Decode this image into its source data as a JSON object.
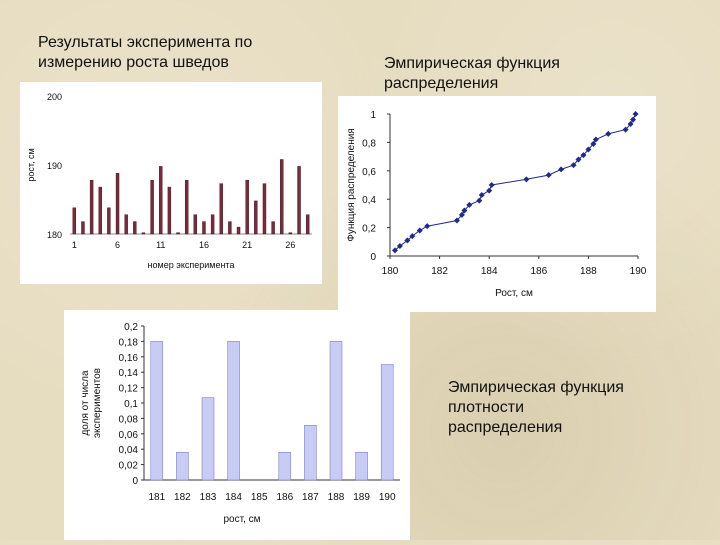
{
  "captions": {
    "top_left": "Результаты эксперимента по\nизмерению роста шведов",
    "top_right": "Эмпирическая функция\nраспределения",
    "bottom_right": "Эмпирическая функция\nплотности\nраспределения"
  },
  "colors": {
    "page_background": "#e6dcc0",
    "height_bars": "#7a2a3a",
    "cdf_line": "#1f2a8c",
    "cdf_markers": "#1f2a8c",
    "density_bars": "#c8ccf4",
    "density_bar_border": "#6a6fc4"
  },
  "chart_data": [
    {
      "id": "heights",
      "type": "bar",
      "ylabel": "рост, см",
      "xlabel": "номер эксперимента",
      "ylim": [
        180,
        200
      ],
      "yticks": [
        "180",
        "190",
        "200"
      ],
      "xticks": [
        "1",
        "6",
        "11",
        "16",
        "21",
        "26"
      ],
      "x": [
        1,
        2,
        3,
        4,
        5,
        6,
        7,
        8,
        9,
        10,
        11,
        12,
        13,
        14,
        15,
        16,
        17,
        18,
        19,
        20,
        21,
        22,
        23,
        24,
        25,
        26,
        27,
        28
      ],
      "values": [
        183.8,
        181.8,
        187.8,
        186.8,
        183.8,
        188.8,
        182.8,
        181.8,
        180.2,
        187.8,
        189.8,
        186.8,
        180.2,
        187.8,
        182.8,
        181.8,
        182.8,
        187.3,
        181.8,
        181,
        187.8,
        184.8,
        187.3,
        181.8,
        190.8,
        180.2,
        189.8,
        182.8
      ],
      "grid": false
    },
    {
      "id": "cdf",
      "type": "line",
      "ylabel": "Функция распределения",
      "xlabel": "Рост, см",
      "xlim": [
        180,
        190
      ],
      "ylim": [
        0,
        1
      ],
      "xticks": [
        "180",
        "182",
        "184",
        "186",
        "188",
        "190"
      ],
      "yticks": [
        "0",
        "0,2",
        "0,4",
        "0,6",
        "0,8",
        "1"
      ],
      "x": [
        180.2,
        180.4,
        180.7,
        180.9,
        181.2,
        181.5,
        182.7,
        182.9,
        183.0,
        183.2,
        183.6,
        183.7,
        184.0,
        184.1,
        185.5,
        186.4,
        186.9,
        187.4,
        187.6,
        187.8,
        188.0,
        188.2,
        188.3,
        188.8,
        189.5,
        189.7,
        189.8,
        189.9
      ],
      "y": [
        0.04,
        0.07,
        0.11,
        0.14,
        0.18,
        0.21,
        0.25,
        0.29,
        0.32,
        0.36,
        0.39,
        0.43,
        0.46,
        0.5,
        0.54,
        0.57,
        0.61,
        0.64,
        0.68,
        0.71,
        0.75,
        0.79,
        0.82,
        0.86,
        0.89,
        0.93,
        0.96,
        1.0
      ],
      "grid": false
    },
    {
      "id": "density",
      "type": "bar",
      "ylabel": "доля от числа экспериментов",
      "xlabel": "рост, см",
      "ylim": [
        0,
        0.2
      ],
      "yticks": [
        "0",
        "0,02",
        "0,04",
        "0,06",
        "0,08",
        "0,1",
        "0,12",
        "0,14",
        "0,16",
        "0,18",
        "0,2"
      ],
      "categories": [
        "181",
        "182",
        "183",
        "184",
        "185",
        "186",
        "187",
        "188",
        "189",
        "190"
      ],
      "values": [
        0.18,
        0.036,
        0.107,
        0.18,
        0,
        0.036,
        0.071,
        0.18,
        0.036,
        0.15
      ],
      "grid": false
    }
  ]
}
